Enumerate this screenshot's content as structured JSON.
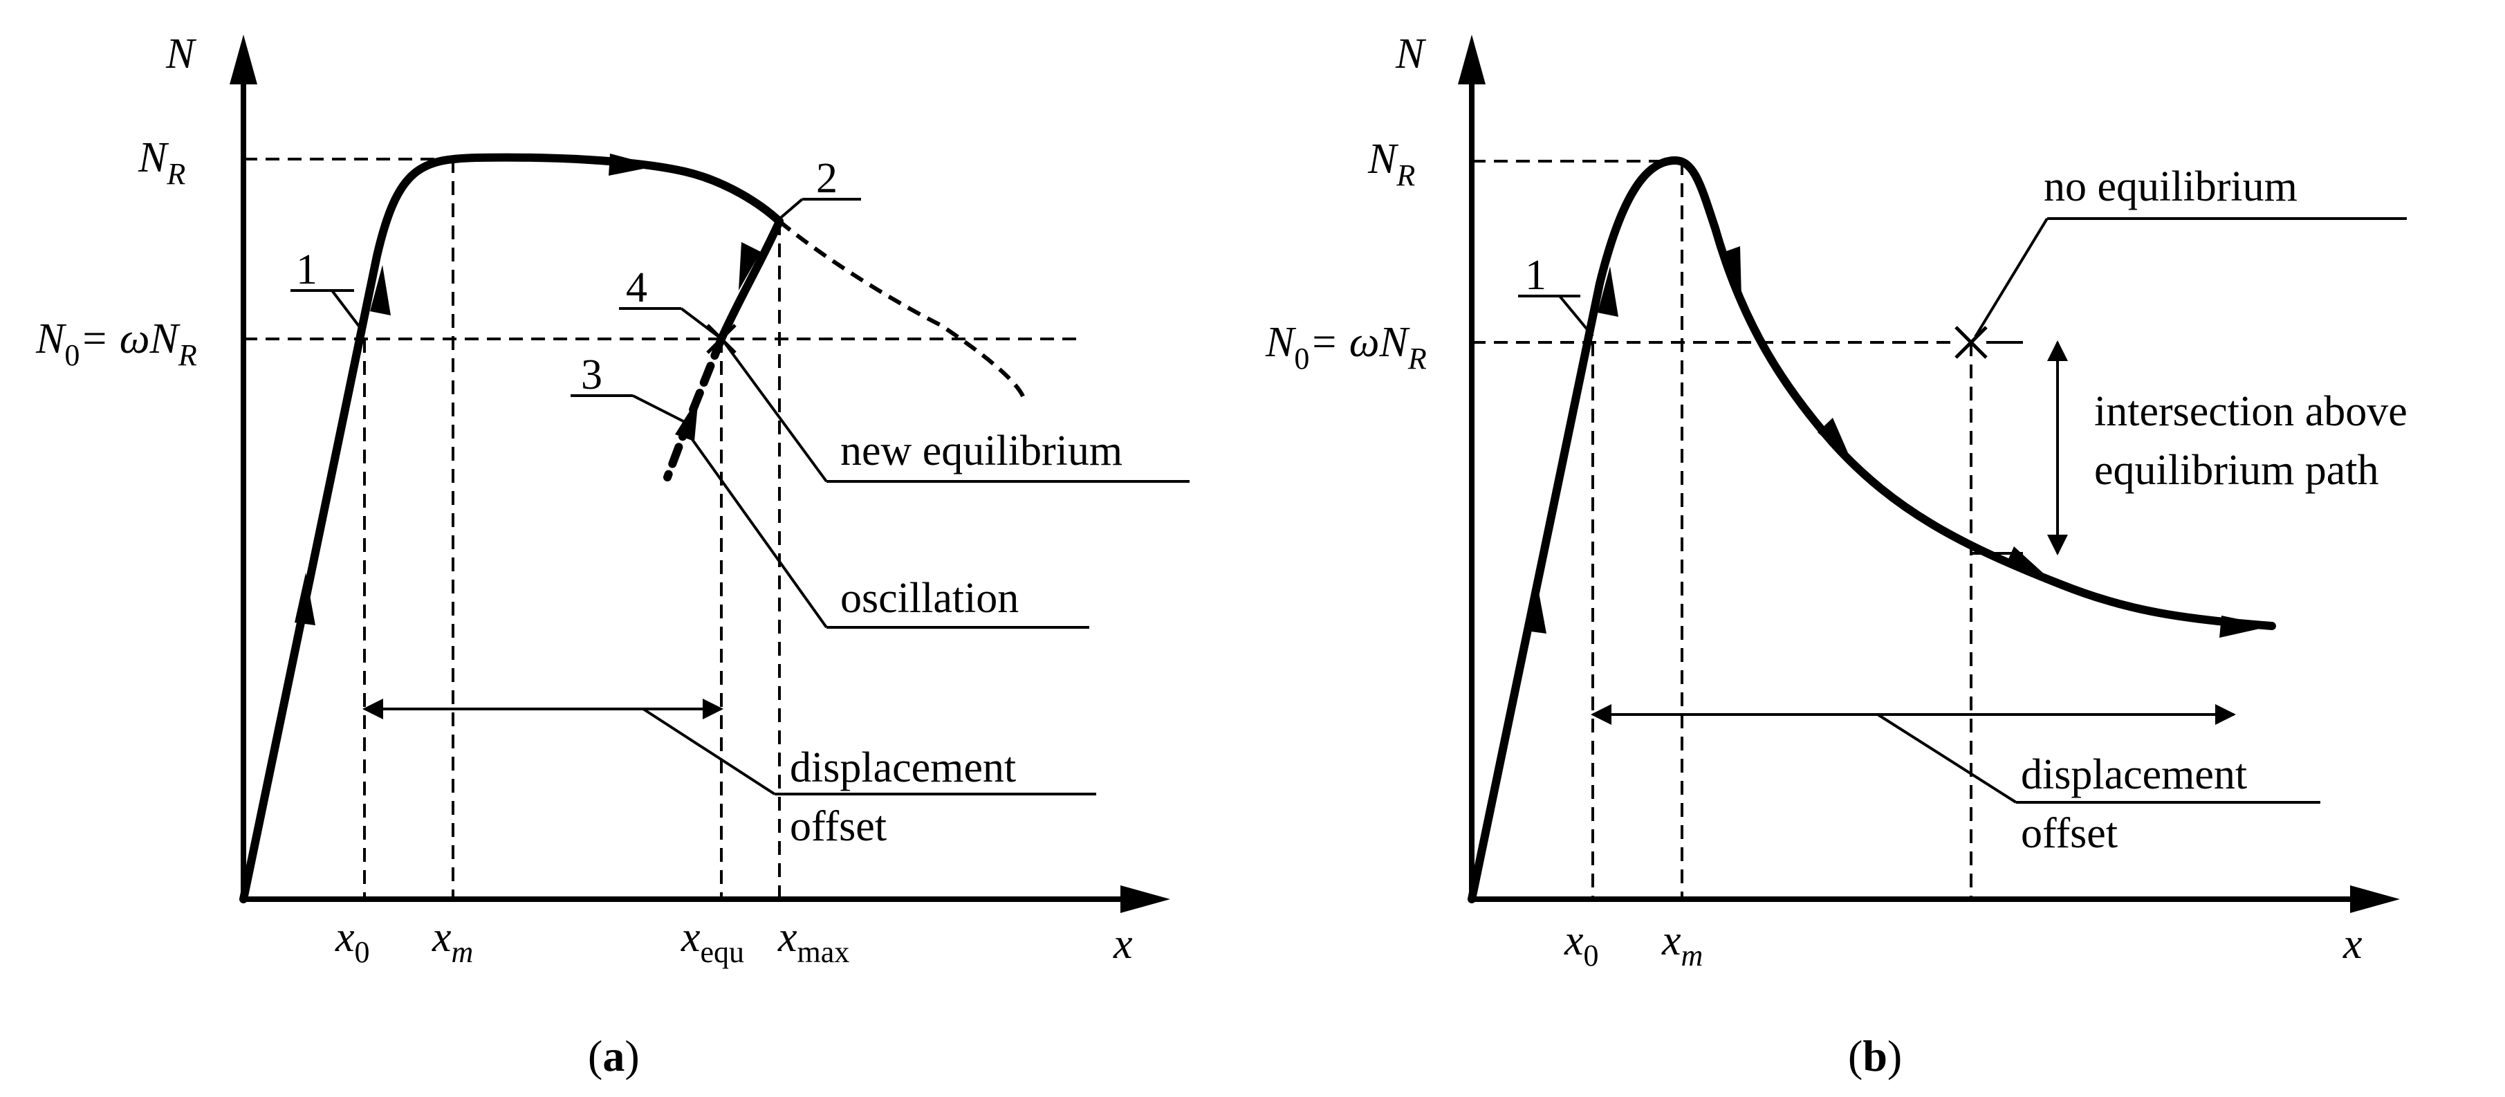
{
  "panel_a": {
    "axis_y_label": "N",
    "axis_x_label": "x",
    "n_r": {
      "base": "N",
      "sub": "R"
    },
    "n0": {
      "base": "N",
      "sub0": "0",
      "eq": "= ωN",
      "subR": "R"
    },
    "ticks": [
      {
        "base": "x",
        "sub": "0"
      },
      {
        "base": "x",
        "sub": "m"
      },
      {
        "base": "x",
        "sub": "equ"
      },
      {
        "base": "x",
        "sub": "max"
      }
    ],
    "markers": [
      "1",
      "2",
      "3",
      "4"
    ],
    "new_equilibrium": "new equilibrium",
    "oscillation": "oscillation",
    "displacement_line1": "displacement",
    "displacement_line2": "offset",
    "caption_open": "(",
    "caption_letter": "a",
    "caption_close": ")"
  },
  "panel_b": {
    "axis_y_label": "N",
    "axis_x_label": "x",
    "n_r": {
      "base": "N",
      "sub": "R"
    },
    "n0": {
      "base": "N",
      "sub0": "0",
      "eq": "= ωN",
      "subR": "R"
    },
    "ticks": [
      {
        "base": "x",
        "sub": "0"
      },
      {
        "base": "x",
        "sub": "m"
      }
    ],
    "marker": "1",
    "no_equilibrium": "no equilibrium",
    "intersection_line1": "intersection above",
    "intersection_line2": "equilibrium path",
    "displacement_line1": "displacement",
    "displacement_line2": "offset",
    "caption_open": "(",
    "caption_letter": "b",
    "caption_close": ")"
  }
}
